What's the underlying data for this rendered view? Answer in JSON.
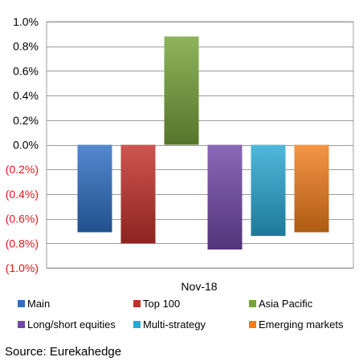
{
  "chart_data": {
    "type": "bar",
    "categories": [
      "Nov-18"
    ],
    "series": [
      {
        "name": "Main",
        "values": [
          -0.71
        ],
        "color": "#2E6FC4"
      },
      {
        "name": "Top 100",
        "values": [
          -0.8
        ],
        "color": "#C4302B"
      },
      {
        "name": "Asia Pacific",
        "values": [
          0.88
        ],
        "color": "#77A33A"
      },
      {
        "name": "Long/short equities",
        "values": [
          -0.85
        ],
        "color": "#7048A8"
      },
      {
        "name": "Multi-strategy",
        "values": [
          -0.74
        ],
        "color": "#2AA8D4"
      },
      {
        "name": "Emerging markets",
        "values": [
          -0.71
        ],
        "color": "#F27E1C"
      }
    ],
    "ylim": [
      -1.0,
      1.0
    ],
    "yticks": [
      {
        "value": 1.0,
        "label": "1.0%"
      },
      {
        "value": 0.8,
        "label": "0.8%"
      },
      {
        "value": 0.6,
        "label": "0.6%"
      },
      {
        "value": 0.4,
        "label": "0.4%"
      },
      {
        "value": 0.2,
        "label": "0.2%"
      },
      {
        "value": 0.0,
        "label": "0.0%"
      },
      {
        "value": -0.2,
        "label": "(0.2%)"
      },
      {
        "value": -0.4,
        "label": "(0.4%)"
      },
      {
        "value": -0.6,
        "label": "(0.6%)"
      },
      {
        "value": -0.8,
        "label": "(0.8%)"
      },
      {
        "value": -1.0,
        "label": "(1.0%)"
      }
    ],
    "negative_tick_color": "#E8141B",
    "grid": true,
    "legend_position": "bottom",
    "title": "",
    "xlabel": "",
    "ylabel": ""
  },
  "source": "Source: Eurekahedge"
}
